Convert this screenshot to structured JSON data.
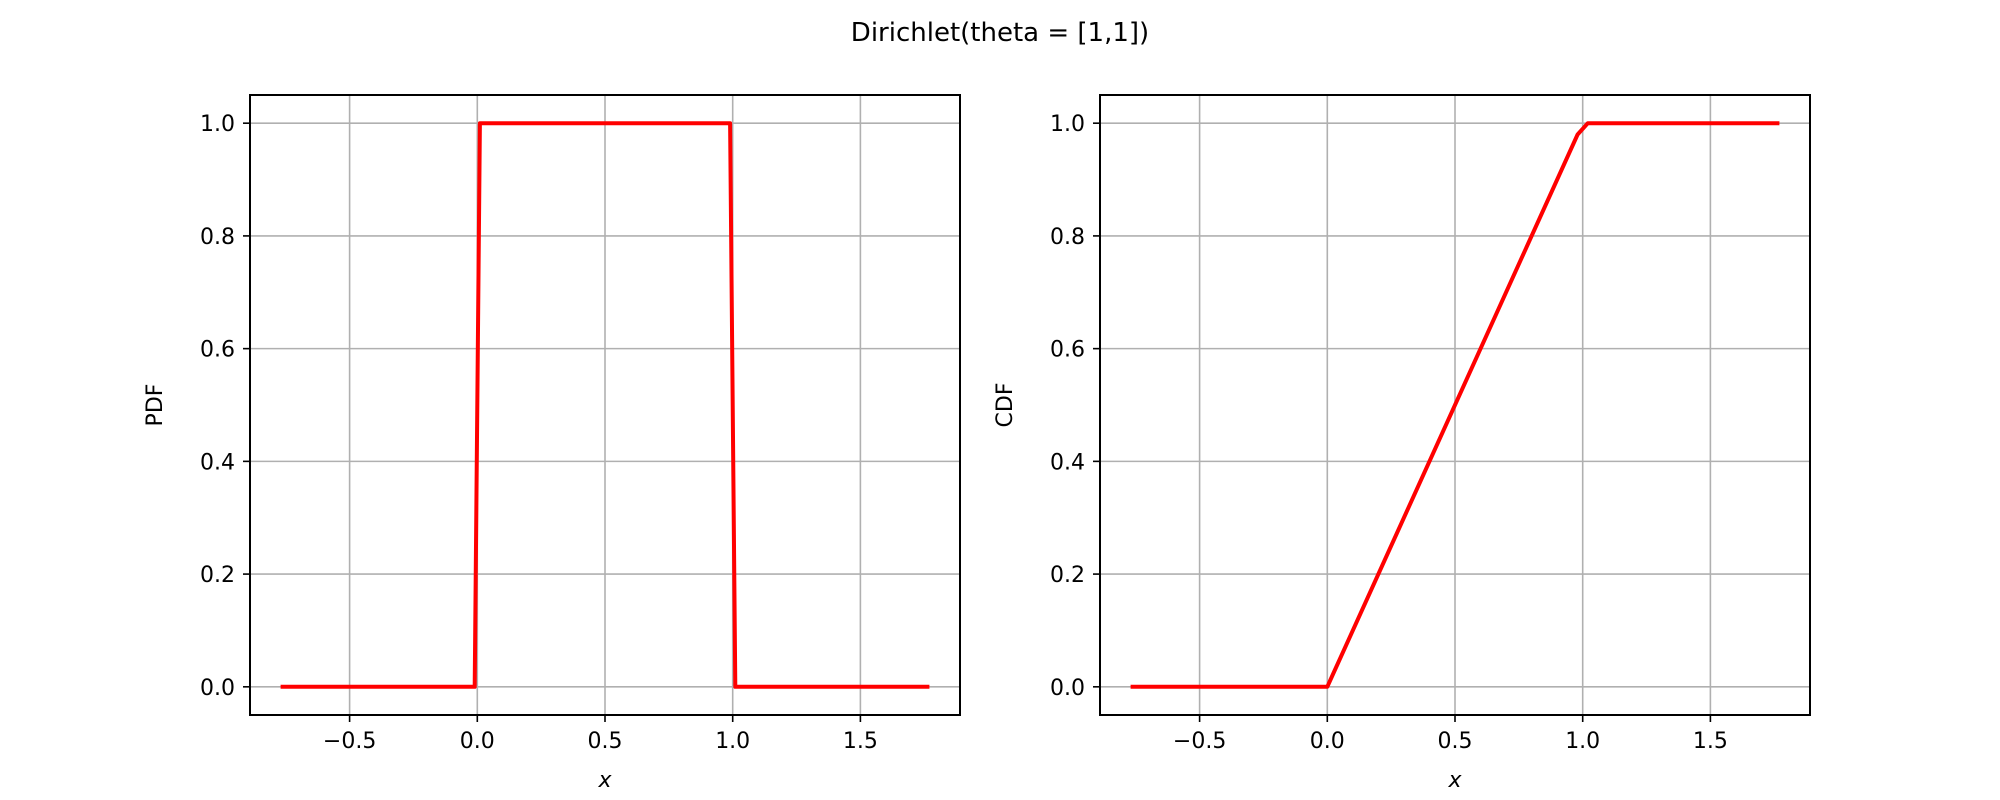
{
  "figure": {
    "title": "Dirichlet(theta = [1,1])"
  },
  "chart_data": [
    {
      "type": "line",
      "xlabel": "x",
      "ylabel": "PDF",
      "xlim": [
        -0.89,
        1.89
      ],
      "ylim": [
        -0.05,
        1.05
      ],
      "xticks": [
        -0.5,
        0.0,
        0.5,
        1.0,
        1.5
      ],
      "xtick_labels": [
        "−0.5",
        "0.0",
        "0.5",
        "1.0",
        "1.5"
      ],
      "yticks": [
        0.0,
        0.2,
        0.4,
        0.6,
        0.8,
        1.0
      ],
      "ytick_labels": [
        "0.0",
        "0.2",
        "0.4",
        "0.6",
        "0.8",
        "1.0"
      ],
      "grid": true,
      "series": [
        {
          "color": "#ff0000",
          "x": [
            -0.77,
            -0.01,
            0.01,
            0.99,
            1.01,
            1.77
          ],
          "y": [
            0.0,
            0.0,
            1.0,
            1.0,
            0.0,
            0.0
          ]
        }
      ]
    },
    {
      "type": "line",
      "xlabel": "x",
      "ylabel": "CDF",
      "xlim": [
        -0.89,
        1.89
      ],
      "ylim": [
        -0.05,
        1.05
      ],
      "xticks": [
        -0.5,
        0.0,
        0.5,
        1.0,
        1.5
      ],
      "xtick_labels": [
        "−0.5",
        "0.0",
        "0.5",
        "1.0",
        "1.5"
      ],
      "yticks": [
        0.0,
        0.2,
        0.4,
        0.6,
        0.8,
        1.0
      ],
      "ytick_labels": [
        "0.0",
        "0.2",
        "0.4",
        "0.6",
        "0.8",
        "1.0"
      ],
      "grid": true,
      "series": [
        {
          "color": "#ff0000",
          "x": [
            -0.77,
            0.0,
            0.02,
            0.98,
            1.02,
            1.77
          ],
          "y": [
            0.0,
            0.0,
            0.02,
            0.98,
            1.0,
            1.0
          ]
        }
      ]
    }
  ]
}
